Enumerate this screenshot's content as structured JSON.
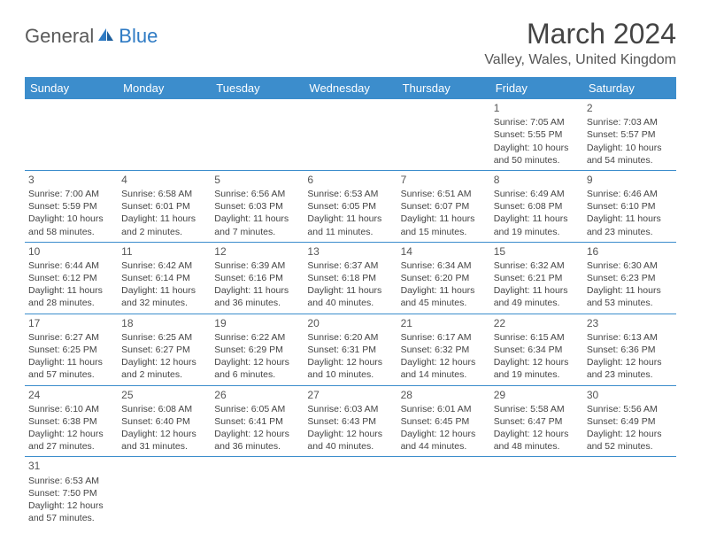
{
  "logo": {
    "general": "General",
    "blue": "Blue"
  },
  "title": "March 2024",
  "location": "Valley, Wales, United Kingdom",
  "colors": {
    "header_bg": "#3c8dcc",
    "header_text": "#ffffff",
    "logo_blue": "#2f7bc4",
    "text": "#444444",
    "border": "#3c8dcc"
  },
  "day_headers": [
    "Sunday",
    "Monday",
    "Tuesday",
    "Wednesday",
    "Thursday",
    "Friday",
    "Saturday"
  ],
  "weeks": [
    [
      null,
      null,
      null,
      null,
      null,
      {
        "num": "1",
        "sunrise": "7:05 AM",
        "sunset": "5:55 PM",
        "daylight": "10 hours and 50 minutes."
      },
      {
        "num": "2",
        "sunrise": "7:03 AM",
        "sunset": "5:57 PM",
        "daylight": "10 hours and 54 minutes."
      }
    ],
    [
      {
        "num": "3",
        "sunrise": "7:00 AM",
        "sunset": "5:59 PM",
        "daylight": "10 hours and 58 minutes."
      },
      {
        "num": "4",
        "sunrise": "6:58 AM",
        "sunset": "6:01 PM",
        "daylight": "11 hours and 2 minutes."
      },
      {
        "num": "5",
        "sunrise": "6:56 AM",
        "sunset": "6:03 PM",
        "daylight": "11 hours and 7 minutes."
      },
      {
        "num": "6",
        "sunrise": "6:53 AM",
        "sunset": "6:05 PM",
        "daylight": "11 hours and 11 minutes."
      },
      {
        "num": "7",
        "sunrise": "6:51 AM",
        "sunset": "6:07 PM",
        "daylight": "11 hours and 15 minutes."
      },
      {
        "num": "8",
        "sunrise": "6:49 AM",
        "sunset": "6:08 PM",
        "daylight": "11 hours and 19 minutes."
      },
      {
        "num": "9",
        "sunrise": "6:46 AM",
        "sunset": "6:10 PM",
        "daylight": "11 hours and 23 minutes."
      }
    ],
    [
      {
        "num": "10",
        "sunrise": "6:44 AM",
        "sunset": "6:12 PM",
        "daylight": "11 hours and 28 minutes."
      },
      {
        "num": "11",
        "sunrise": "6:42 AM",
        "sunset": "6:14 PM",
        "daylight": "11 hours and 32 minutes."
      },
      {
        "num": "12",
        "sunrise": "6:39 AM",
        "sunset": "6:16 PM",
        "daylight": "11 hours and 36 minutes."
      },
      {
        "num": "13",
        "sunrise": "6:37 AM",
        "sunset": "6:18 PM",
        "daylight": "11 hours and 40 minutes."
      },
      {
        "num": "14",
        "sunrise": "6:34 AM",
        "sunset": "6:20 PM",
        "daylight": "11 hours and 45 minutes."
      },
      {
        "num": "15",
        "sunrise": "6:32 AM",
        "sunset": "6:21 PM",
        "daylight": "11 hours and 49 minutes."
      },
      {
        "num": "16",
        "sunrise": "6:30 AM",
        "sunset": "6:23 PM",
        "daylight": "11 hours and 53 minutes."
      }
    ],
    [
      {
        "num": "17",
        "sunrise": "6:27 AM",
        "sunset": "6:25 PM",
        "daylight": "11 hours and 57 minutes."
      },
      {
        "num": "18",
        "sunrise": "6:25 AM",
        "sunset": "6:27 PM",
        "daylight": "12 hours and 2 minutes."
      },
      {
        "num": "19",
        "sunrise": "6:22 AM",
        "sunset": "6:29 PM",
        "daylight": "12 hours and 6 minutes."
      },
      {
        "num": "20",
        "sunrise": "6:20 AM",
        "sunset": "6:31 PM",
        "daylight": "12 hours and 10 minutes."
      },
      {
        "num": "21",
        "sunrise": "6:17 AM",
        "sunset": "6:32 PM",
        "daylight": "12 hours and 14 minutes."
      },
      {
        "num": "22",
        "sunrise": "6:15 AM",
        "sunset": "6:34 PM",
        "daylight": "12 hours and 19 minutes."
      },
      {
        "num": "23",
        "sunrise": "6:13 AM",
        "sunset": "6:36 PM",
        "daylight": "12 hours and 23 minutes."
      }
    ],
    [
      {
        "num": "24",
        "sunrise": "6:10 AM",
        "sunset": "6:38 PM",
        "daylight": "12 hours and 27 minutes."
      },
      {
        "num": "25",
        "sunrise": "6:08 AM",
        "sunset": "6:40 PM",
        "daylight": "12 hours and 31 minutes."
      },
      {
        "num": "26",
        "sunrise": "6:05 AM",
        "sunset": "6:41 PM",
        "daylight": "12 hours and 36 minutes."
      },
      {
        "num": "27",
        "sunrise": "6:03 AM",
        "sunset": "6:43 PM",
        "daylight": "12 hours and 40 minutes."
      },
      {
        "num": "28",
        "sunrise": "6:01 AM",
        "sunset": "6:45 PM",
        "daylight": "12 hours and 44 minutes."
      },
      {
        "num": "29",
        "sunrise": "5:58 AM",
        "sunset": "6:47 PM",
        "daylight": "12 hours and 48 minutes."
      },
      {
        "num": "30",
        "sunrise": "5:56 AM",
        "sunset": "6:49 PM",
        "daylight": "12 hours and 52 minutes."
      }
    ],
    [
      {
        "num": "31",
        "sunrise": "6:53 AM",
        "sunset": "7:50 PM",
        "daylight": "12 hours and 57 minutes."
      },
      null,
      null,
      null,
      null,
      null,
      null
    ]
  ],
  "labels": {
    "sunrise": "Sunrise:",
    "sunset": "Sunset:",
    "daylight": "Daylight:"
  }
}
